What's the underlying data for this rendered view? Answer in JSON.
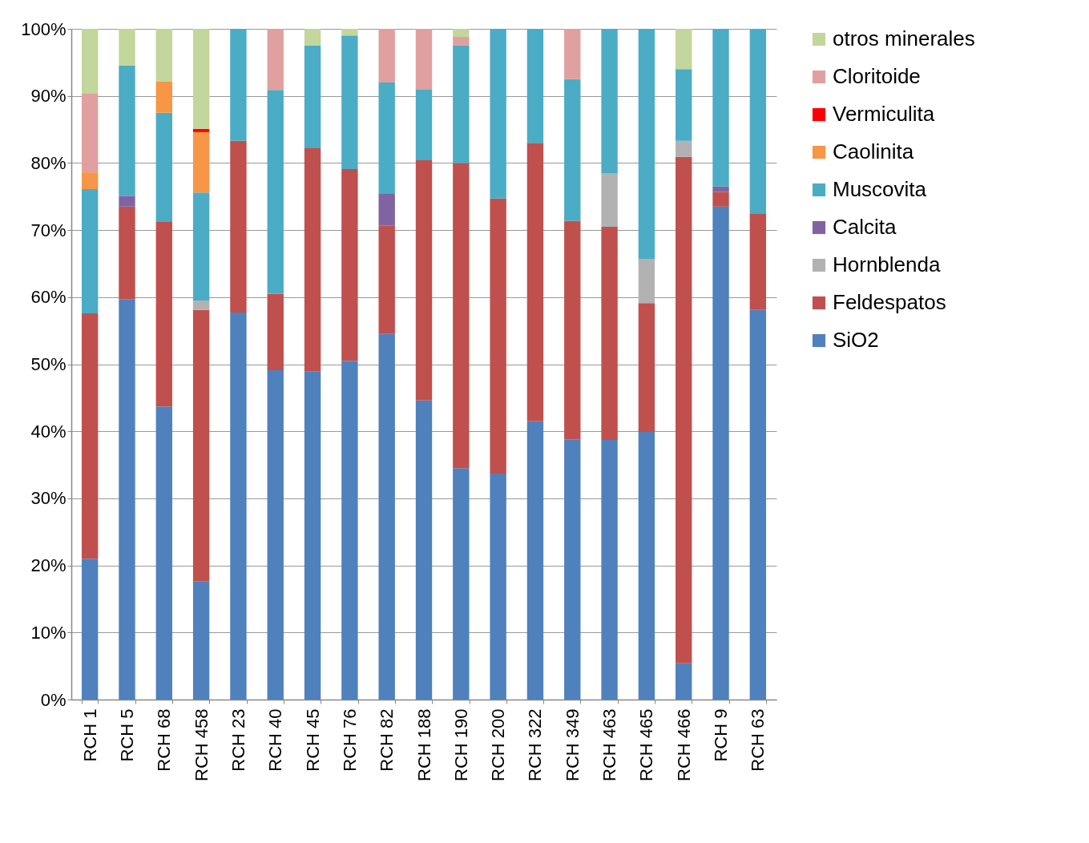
{
  "chart_data": {
    "type": "bar",
    "stacked": true,
    "grid": "y",
    "legend": "right",
    "categories": [
      "RCH 1",
      "RCH 5",
      "RCH 68",
      "RCH 458",
      "RCH 23",
      "RCH 40",
      "RCH 45",
      "RCH 76",
      "RCH 82",
      "RCH 188",
      "RCH 190",
      "RCH 200",
      "RCH 322",
      "RCH 349",
      "RCH 463",
      "RCH 465",
      "RCH 466",
      "RCH 9",
      "RCH 63"
    ],
    "ylim": [
      0,
      100
    ],
    "yticks": [
      {
        "value": 0,
        "label": "0%"
      },
      {
        "value": 10,
        "label": "10%"
      },
      {
        "value": 20,
        "label": "20%"
      },
      {
        "value": 30,
        "label": "30%"
      },
      {
        "value": 40,
        "label": "40%"
      },
      {
        "value": 50,
        "label": "50%"
      },
      {
        "value": 60,
        "label": "60%"
      },
      {
        "value": 70,
        "label": "70%"
      },
      {
        "value": 80,
        "label": "80%"
      },
      {
        "value": 90,
        "label": "90%"
      },
      {
        "value": 100,
        "label": "100%"
      }
    ],
    "series": [
      {
        "name": "SiO2",
        "color": "#4f81bd",
        "values": [
          21,
          59.7,
          43.7,
          17.6,
          57.7,
          49.1,
          48.9,
          50.5,
          54.5,
          44.6,
          34.5,
          33.7,
          41.5,
          38.8,
          38.7,
          39.9,
          5.4,
          73.5,
          58.1
        ]
      },
      {
        "name": "Feldespatos",
        "color": "#c0504d",
        "values": [
          36.6,
          13.8,
          27.5,
          40.5,
          25.6,
          11.4,
          33.3,
          28.6,
          16.2,
          35.8,
          45.5,
          41,
          41.5,
          32.6,
          31.8,
          19.2,
          75.5,
          2.2,
          14.3
        ]
      },
      {
        "name": "Hornblenda",
        "color": "#b2b2b2",
        "values": [
          null,
          null,
          null,
          1.4,
          null,
          null,
          null,
          null,
          null,
          null,
          null,
          null,
          null,
          null,
          8,
          6.6,
          2.4,
          null,
          null
        ]
      },
      {
        "name": "Calcita",
        "color": "#8064a2",
        "values": [
          null,
          1.6,
          null,
          null,
          null,
          null,
          null,
          null,
          4.7,
          null,
          null,
          null,
          null,
          null,
          null,
          null,
          null,
          0.8,
          null
        ]
      },
      {
        "name": "Muscovita",
        "color": "#4bacc6",
        "values": [
          18.5,
          19.4,
          16.3,
          16.1,
          16.7,
          30.4,
          15.3,
          19.9,
          16.6,
          10.6,
          17.5,
          25.3,
          17,
          21.1,
          21.5,
          34.3,
          10.7,
          23.5,
          27.6
        ]
      },
      {
        "name": "Caolinita",
        "color": "#f79646",
        "values": [
          2.5,
          null,
          4.6,
          9,
          null,
          null,
          null,
          null,
          null,
          null,
          null,
          null,
          null,
          null,
          null,
          null,
          null,
          null,
          null
        ]
      },
      {
        "name": "Vermiculita",
        "color": "#ff0000",
        "values": [
          null,
          null,
          null,
          0.5,
          null,
          null,
          null,
          null,
          null,
          null,
          null,
          null,
          null,
          null,
          null,
          null,
          null,
          null,
          null
        ]
      },
      {
        "name": "Cloritoide",
        "color": "#e0a09f",
        "values": [
          11.8,
          null,
          null,
          null,
          null,
          9.1,
          null,
          null,
          8,
          9,
          1.3,
          null,
          null,
          7.5,
          null,
          null,
          null,
          null,
          null
        ]
      },
      {
        "name": "otros minerales",
        "color": "#c3d69b",
        "values": [
          9.6,
          5.5,
          7.9,
          14.9,
          null,
          null,
          2.5,
          1,
          null,
          null,
          1.2,
          null,
          null,
          null,
          null,
          null,
          6,
          null,
          null
        ]
      }
    ]
  }
}
